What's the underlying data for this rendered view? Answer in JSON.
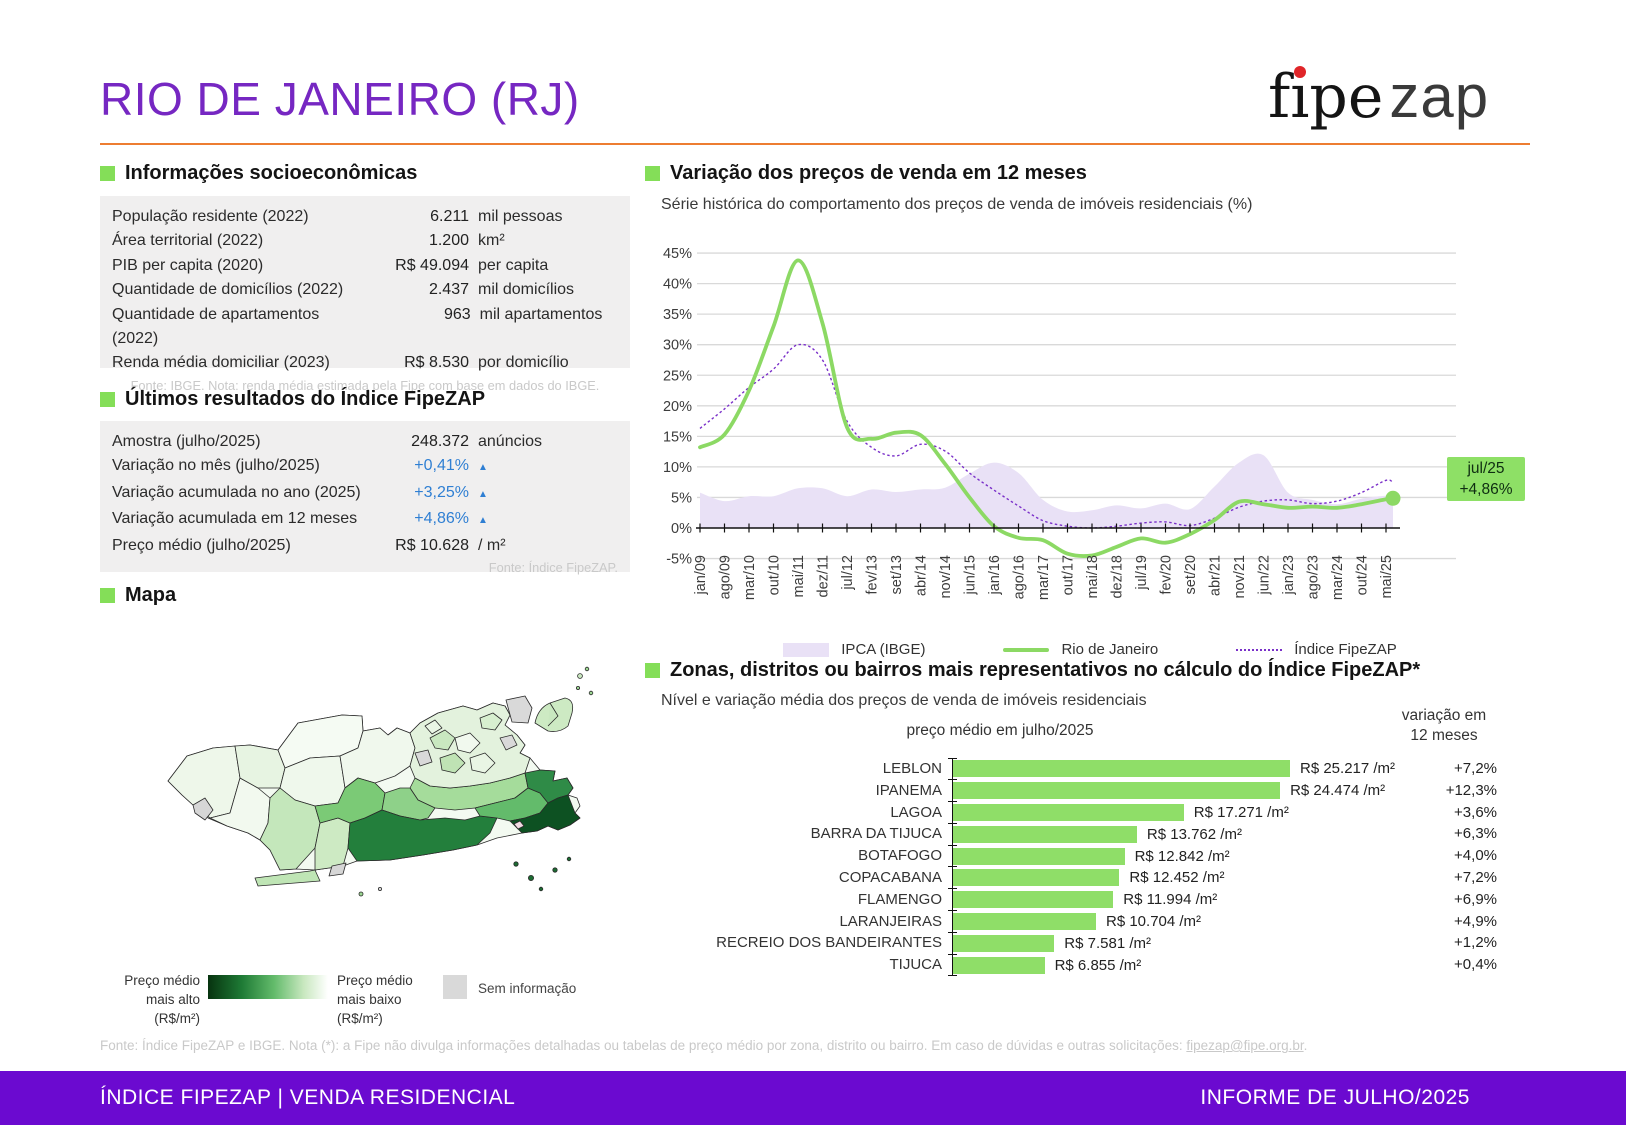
{
  "title": "RIO DE JANEIRO (RJ)",
  "logo": {
    "f": "f",
    "i": "ı",
    "pe": "pe",
    "zap": "zap"
  },
  "socio": {
    "heading": "Informações socioeconômicas",
    "rows": [
      {
        "label": "População residente (2022)",
        "value": "6.211",
        "unit": "mil pessoas"
      },
      {
        "label": "Área territorial (2022)",
        "value": "1.200",
        "unit": "km²"
      },
      {
        "label": "PIB per capita (2020)",
        "value": "R$ 49.094",
        "unit": "per capita"
      },
      {
        "label": "Quantidade de domicílios (2022)",
        "value": "2.437",
        "unit": "mil domicílios"
      },
      {
        "label": "Quantidade de apartamentos (2022)",
        "value": "963",
        "unit": "mil apartamentos"
      },
      {
        "label": "Renda média domiciliar (2023)",
        "value": "R$ 8.530",
        "unit": "por domicílio"
      }
    ],
    "fonte": "Fonte: IBGE. Nota: renda média estimada pela Fipe com base em dados do IBGE."
  },
  "resultados": {
    "heading": "Últimos resultados do Índice FipeZAP",
    "rows": [
      {
        "label": "Amostra (julho/2025)",
        "value": "248.372",
        "unit": "anúncios",
        "blue": false
      },
      {
        "label": "Variação no mês (julho/2025)",
        "value": "+0,41%",
        "unit": "▲",
        "blue": true
      },
      {
        "label": "Variação acumulada no ano (2025)",
        "value": "+3,25%",
        "unit": "▲",
        "blue": true
      },
      {
        "label": "Variação acumulada em 12 meses",
        "value": "+4,86%",
        "unit": "▲",
        "blue": true
      },
      {
        "label": "Preço médio (julho/2025)",
        "value": "R$ 10.628",
        "unit": "/ m²",
        "blue": false
      }
    ],
    "fonte": "Fonte: Índice FipeZAP."
  },
  "mapa": {
    "heading": "Mapa",
    "legend": {
      "high": [
        "Preço médio",
        "mais alto",
        "(R$/m²)"
      ],
      "low": [
        "Preço médio",
        "mais baixo",
        "(R$/m²)"
      ],
      "none": "Sem informação",
      "high_color": "#07330f",
      "low_color": "#ffffff",
      "none_color": "#d9d9d9"
    }
  },
  "chart_data": {
    "type": "line",
    "title": "Variação dos preços de venda em 12 meses",
    "subtitle": "Série histórica do comportamento dos preços de venda de imóveis residenciais (%)",
    "ylim": [
      -5,
      45
    ],
    "y_ticks": [
      "45%",
      "40%",
      "35%",
      "30%",
      "25%",
      "20%",
      "15%",
      "10%",
      "5%",
      "0%",
      "-5%"
    ],
    "x_tick_labels": [
      "jan/09",
      "ago/09",
      "mar/10",
      "out/10",
      "mai/11",
      "dez/11",
      "jul/12",
      "fev/13",
      "set/13",
      "abr/14",
      "nov/14",
      "jun/15",
      "jan/16",
      "ago/16",
      "mar/17",
      "out/17",
      "mai/18",
      "dez/18",
      "jul/19",
      "fev/20",
      "set/20",
      "abr/21",
      "nov/21",
      "jun/22",
      "jan/23",
      "ago/23",
      "mar/24",
      "out/24",
      "mai/25"
    ],
    "grid": true,
    "legend_position": "bottom",
    "series": [
      {
        "name": "IPCA (IBGE)",
        "type": "area",
        "color": "#e9e1f6",
        "values": [
          5.8,
          4.4,
          5.2,
          5.2,
          6.5,
          6.5,
          5.2,
          6.3,
          5.9,
          6.3,
          6.6,
          8.9,
          10.7,
          9.0,
          4.6,
          2.7,
          2.9,
          3.7,
          3.2,
          4.0,
          3.1,
          6.8,
          10.7,
          11.9,
          5.8,
          4.6,
          3.9,
          4.8,
          5.3,
          5.3
        ]
      },
      {
        "name": "Rio de Janeiro",
        "type": "line",
        "color": "#8cd964",
        "values": [
          13.2,
          15.3,
          22.5,
          33.0,
          43.8,
          33.5,
          16.5,
          14.6,
          15.6,
          15.2,
          10.5,
          5.0,
          0.3,
          -1.6,
          -2.0,
          -4.2,
          -4.5,
          -3.1,
          -1.7,
          -2.4,
          -1.0,
          1.3,
          4.3,
          3.9,
          3.3,
          3.5,
          3.3,
          3.9,
          4.7,
          4.86
        ]
      },
      {
        "name": "Índice FipeZAP",
        "type": "dotted-line",
        "color": "#7a30c9",
        "values": [
          16.3,
          19.5,
          23.0,
          26.0,
          30.0,
          27.5,
          17.5,
          13.2,
          11.8,
          13.7,
          12.6,
          9.0,
          6.2,
          3.6,
          1.2,
          0.3,
          0.0,
          0.3,
          0.8,
          1.0,
          0.4,
          1.6,
          3.4,
          4.4,
          4.6,
          4.0,
          4.4,
          5.8,
          7.8,
          7.4
        ]
      }
    ],
    "end_label": {
      "line1": "jul/25",
      "line2": "+4,86%"
    }
  },
  "bairros": {
    "heading": "Zonas, distritos ou bairros mais representativos no cálculo do Índice FipeZAP*",
    "subtitle": "Nível e variação média dos preços de venda de imóveis residenciais",
    "col_price": "preço médio em julho/2025",
    "col_var": [
      "variação em",
      "12 meses"
    ],
    "max_value": 25217,
    "bar_color": "#8fde68",
    "rows": [
      {
        "name": "LEBLON",
        "num": 25217,
        "price": "R$ 25.217 /m²",
        "variation": "+7,2%"
      },
      {
        "name": "IPANEMA",
        "num": 24474,
        "price": "R$ 24.474 /m²",
        "variation": "+12,3%"
      },
      {
        "name": "LAGOA",
        "num": 17271,
        "price": "R$ 17.271 /m²",
        "variation": "+3,6%"
      },
      {
        "name": "BARRA DA TIJUCA",
        "num": 13762,
        "price": "R$ 13.762 /m²",
        "variation": "+6,3%"
      },
      {
        "name": "BOTAFOGO",
        "num": 12842,
        "price": "R$ 12.842 /m²",
        "variation": "+4,0%"
      },
      {
        "name": "COPACABANA",
        "num": 12452,
        "price": "R$ 12.452 /m²",
        "variation": "+7,2%"
      },
      {
        "name": "FLAMENGO",
        "num": 11994,
        "price": "R$ 11.994 /m²",
        "variation": "+6,9%"
      },
      {
        "name": "LARANJEIRAS",
        "num": 10704,
        "price": "R$ 10.704 /m²",
        "variation": "+4,9%"
      },
      {
        "name": "RECREIO DOS BANDEIRANTES",
        "num": 7581,
        "price": "R$ 7.581 /m²",
        "variation": "+1,2%"
      },
      {
        "name": "TIJUCA",
        "num": 6855,
        "price": "R$ 6.855 /m²",
        "variation": "+0,4%"
      }
    ]
  },
  "footer": {
    "text_before": "Fonte: Índice FipeZAP e IBGE. Nota (*): a Fipe não divulga informações detalhadas ou tabelas de preço médio por zona, distrito ou bairro. Em caso de dúvidas e outras solicitações: ",
    "link": "fipezap@fipe.org.br",
    "text_after": "."
  },
  "bottom_bar": {
    "left": "ÍNDICE FIPEZAP | VENDA RESIDENCIAL",
    "right": "INFORME DE JULHO/2025"
  },
  "colors": {
    "title_purple": "#7627c2",
    "rule_orange": "#ed7d31",
    "section_square_green": "#84de58",
    "value_blue": "#2f7fd3",
    "panel_gray": "#f0efef",
    "bottom_bar_purple": "#6b0ad0",
    "callout_green": "#8ee066"
  }
}
